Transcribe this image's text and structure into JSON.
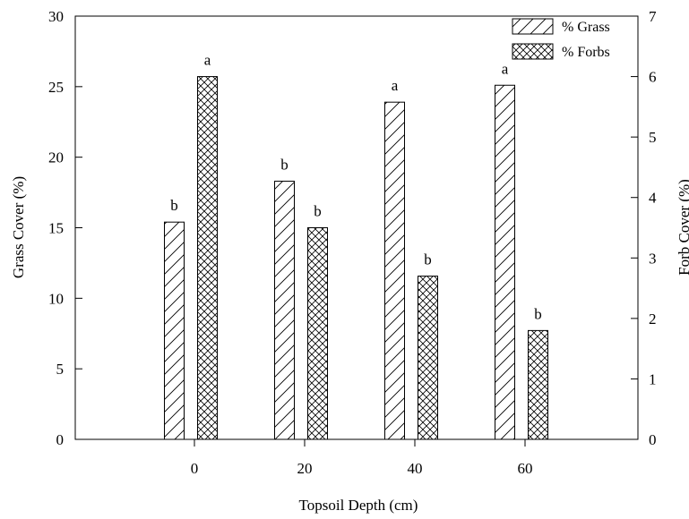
{
  "chart_data": {
    "type": "bar",
    "title": "",
    "xlabel": "Topsoil Depth (cm)",
    "ylabel_left": "Grass Cover (%)",
    "ylabel_right": "Forb Cover (%)",
    "categories": [
      "0",
      "20",
      "40",
      "60"
    ],
    "ylim_left": [
      0,
      30
    ],
    "ylim_right": [
      0,
      7
    ],
    "yticks_left": [
      0,
      5,
      10,
      15,
      20,
      25,
      30
    ],
    "yticks_right": [
      0,
      1,
      2,
      3,
      4,
      5,
      6,
      7
    ],
    "grid": false,
    "legend_position": "top-right",
    "series": [
      {
        "name": "% Grass",
        "axis": "left",
        "pattern": "diagonal-hatch",
        "values": [
          15.4,
          18.3,
          23.9,
          25.1
        ],
        "letters": [
          "b",
          "b",
          "a",
          "a"
        ]
      },
      {
        "name": "% Forbs",
        "axis": "right",
        "pattern": "cross-hatch",
        "values": [
          6.0,
          3.5,
          2.7,
          1.8
        ],
        "letters": [
          "a",
          "b",
          "b",
          "b"
        ]
      }
    ]
  }
}
